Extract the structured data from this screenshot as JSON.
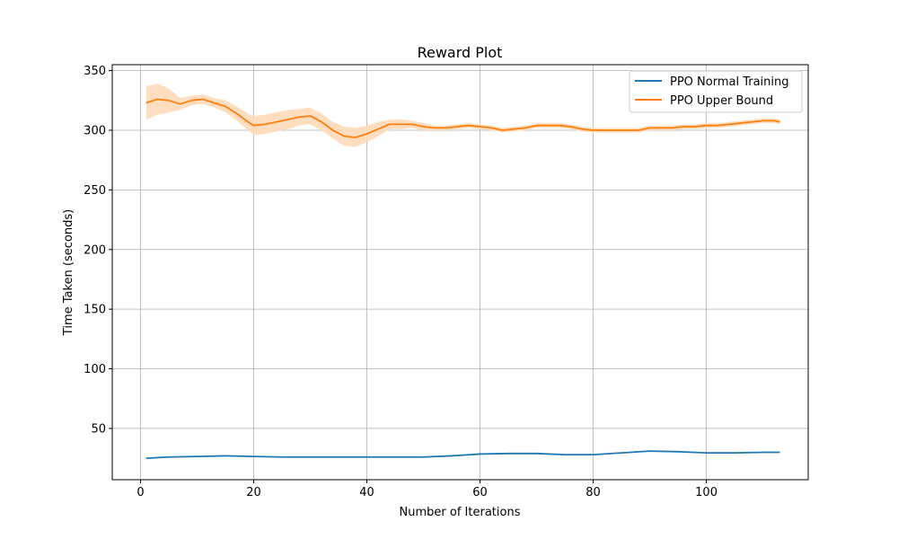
{
  "chart_data": {
    "type": "line",
    "title": "Reward Plot",
    "xlabel": "Number of Iterations",
    "ylabel": "Time Taken (seconds)",
    "xlim": [
      -5,
      118
    ],
    "ylim": [
      7,
      355
    ],
    "xticks": [
      0,
      20,
      40,
      60,
      80,
      100
    ],
    "yticks": [
      50,
      100,
      150,
      200,
      250,
      300,
      350
    ],
    "grid": true,
    "legend_position": "top-right",
    "series": [
      {
        "name": "PPO Normal Training",
        "color": "#1f77b4",
        "x": [
          1,
          5,
          10,
          15,
          20,
          25,
          30,
          35,
          40,
          45,
          50,
          55,
          60,
          65,
          70,
          75,
          80,
          85,
          90,
          95,
          100,
          105,
          110,
          113
        ],
        "y": [
          25,
          26,
          26.5,
          27,
          26.5,
          26,
          26,
          26,
          26,
          26,
          26,
          27,
          28.5,
          29,
          29,
          28,
          28,
          29.5,
          31,
          30.5,
          29.5,
          29.5,
          30,
          30
        ],
        "band": []
      },
      {
        "name": "PPO Upper Bound",
        "color": "#ff7f0e",
        "band_color": "#ffdab9",
        "x": [
          1,
          3,
          5,
          7,
          9,
          11,
          13,
          15,
          17,
          19,
          20,
          22,
          24,
          26,
          28,
          30,
          32,
          34,
          36,
          38,
          40,
          42,
          44,
          46,
          48,
          50,
          52,
          54,
          56,
          58,
          60,
          62,
          64,
          66,
          68,
          70,
          72,
          74,
          76,
          78,
          80,
          82,
          84,
          86,
          88,
          90,
          92,
          94,
          96,
          98,
          100,
          102,
          104,
          106,
          108,
          110,
          112,
          113
        ],
        "y": [
          323,
          326,
          325,
          322,
          325,
          326,
          323,
          320,
          314,
          307,
          304,
          305,
          307,
          309,
          311,
          312,
          307,
          300,
          295,
          294,
          297,
          301,
          305,
          305,
          305,
          303,
          302,
          302,
          303,
          304,
          303,
          302,
          300,
          301,
          302,
          304,
          304,
          304,
          303,
          301,
          300,
          300,
          300,
          300,
          300,
          302,
          302,
          302,
          303,
          303,
          304,
          304,
          305,
          306,
          307,
          308,
          308,
          307
        ],
        "band": [
          14,
          13,
          10,
          5,
          4,
          4,
          4,
          5,
          6,
          7,
          8,
          8,
          8,
          8,
          7,
          7,
          7,
          7,
          8,
          8,
          7,
          6,
          4,
          4,
          3,
          3,
          2,
          2,
          2,
          2,
          2,
          2,
          2,
          2,
          2,
          2,
          2,
          2,
          2,
          2,
          2,
          2,
          2,
          2,
          2,
          2,
          2,
          2,
          2,
          2,
          2,
          2,
          2,
          2,
          2,
          2,
          2,
          2
        ]
      }
    ]
  }
}
